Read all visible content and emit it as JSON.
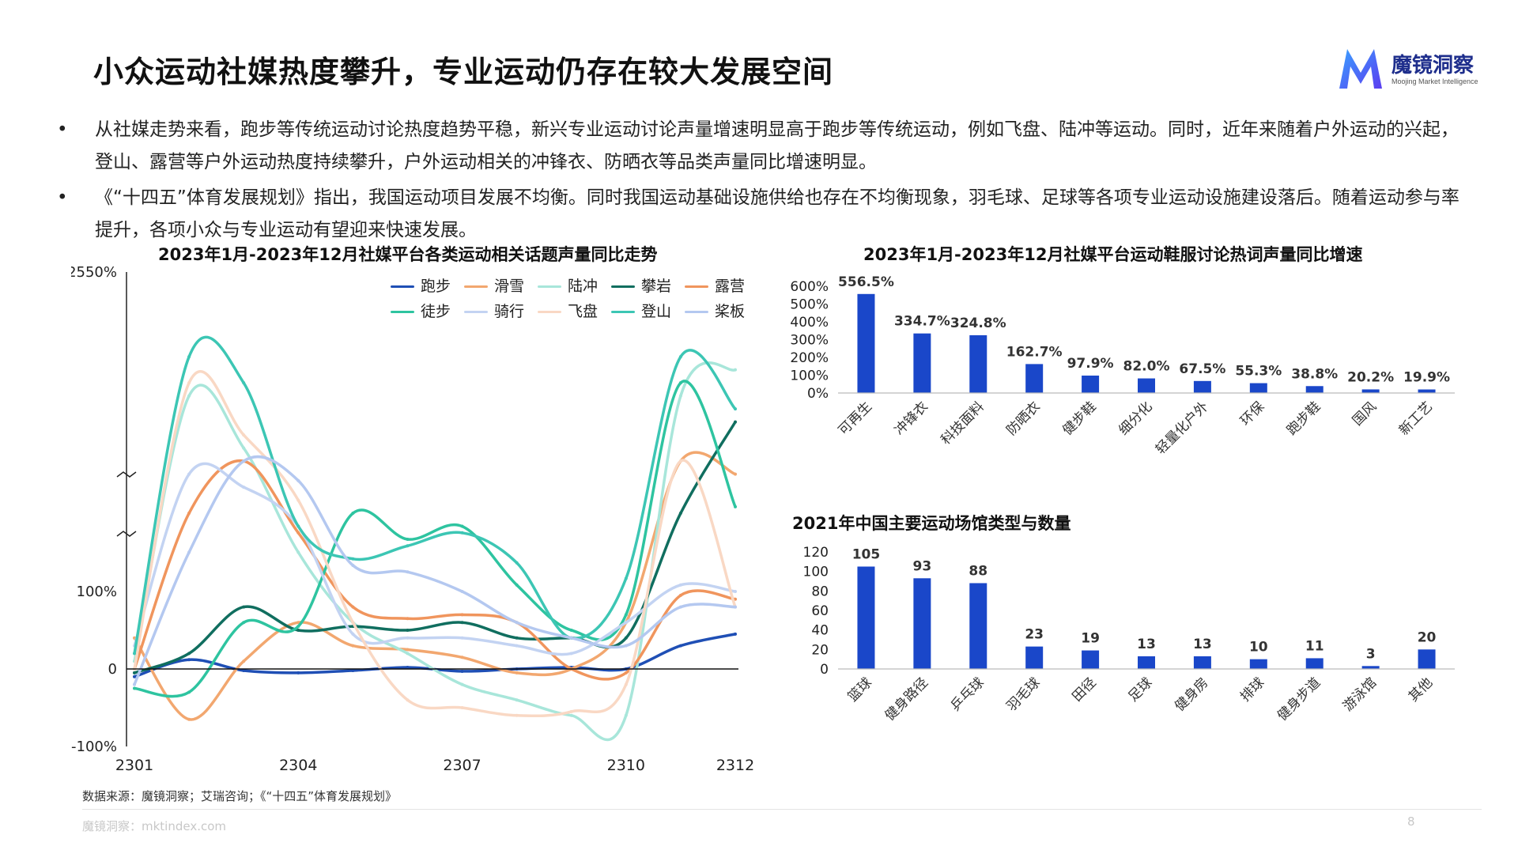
{
  "page": {
    "title": "小众运动社媒热度攀升，专业运动仍存在较大发展空间",
    "logo_name": "魔镜洞察",
    "logo_sub": "Moojing Market Intelligence",
    "bullet_symbol": "•",
    "bullets": [
      "从社媒走势来看，跑步等传统运动讨论热度趋势平稳，新兴专业运动讨论声量增速明显高于跑步等传统运动，例如飞盘、陆冲等运动。同时，近年来随着户外运动的兴起，登山、露营等户外运动热度持续攀升，户外运动相关的冲锋衣、防晒衣等品类声量同比增速明显。",
      "《“十四五”体育发展规划》指出，我国运动项目发展不均衡。同时我国运动基础设施供给也存在不均衡现象，羽毛球、足球等各项专业运动设施建设落后。随着运动参与率提升，各项小众与专业运动有望迎来快速发展。"
    ],
    "source": "数据来源：魔镜洞察；艾瑞咨询；《“十四五”体育发展规划》",
    "site": "魔镜洞察：mktindex.com",
    "page_number": "8"
  },
  "chart_data": [
    {
      "type": "line",
      "title": "2023年1月-2023年12月社媒平台各类运动相关话题声量同比走势",
      "y_tick_labels": [
        "2550%",
        "100%",
        "0",
        "-100%"
      ],
      "x_tick_labels": [
        "2301",
        "2304",
        "2307",
        "2310",
        "2312"
      ],
      "ylim": [
        -100,
        2550
      ],
      "axis_break": true,
      "legend_position": "top-right",
      "x": [
        "2301",
        "2302",
        "2303",
        "2304",
        "2305",
        "2306",
        "2307",
        "2308",
        "2309",
        "2310",
        "2311",
        "2312"
      ],
      "series": [
        {
          "name": "跑步",
          "color": "#1f4fb5",
          "values": [
            -10,
            12,
            -2,
            -5,
            -2,
            2,
            -3,
            0,
            2,
            0,
            30,
            45
          ]
        },
        {
          "name": "滑雪",
          "color": "#f2a76f",
          "values": [
            40,
            -65,
            10,
            60,
            30,
            25,
            15,
            -5,
            0,
            60,
            1100,
            1000
          ]
        },
        {
          "name": "陆冲",
          "color": "#a8e6da",
          "values": [
            10,
            1600,
            1200,
            400,
            60,
            20,
            -20,
            -40,
            -60,
            -60,
            1600,
            1800
          ]
        },
        {
          "name": "攀岩",
          "color": "#106e5f",
          "values": [
            -5,
            20,
            80,
            50,
            55,
            50,
            60,
            40,
            40,
            40,
            700,
            1400
          ]
        },
        {
          "name": "露营",
          "color": "#f0955d",
          "values": [
            0,
            700,
            1100,
            550,
            80,
            65,
            70,
            60,
            0,
            -5,
            95,
            90
          ]
        },
        {
          "name": "徒步",
          "color": "#2ec4a0",
          "values": [
            -25,
            -30,
            60,
            55,
            700,
            500,
            600,
            150,
            50,
            70,
            1700,
            750
          ]
        },
        {
          "name": "骑行",
          "color": "#c3d3f2",
          "values": [
            30,
            1000,
            900,
            600,
            45,
            40,
            40,
            30,
            20,
            60,
            150,
            100
          ]
        },
        {
          "name": "飞盘",
          "color": "#f9d8c4",
          "values": [
            0,
            1700,
            1300,
            800,
            60,
            -40,
            -50,
            -60,
            -55,
            -20,
            1100,
            80
          ]
        },
        {
          "name": "登山",
          "color": "#3cc6b4",
          "values": [
            20,
            1900,
            1700,
            600,
            350,
            450,
            550,
            320,
            40,
            200,
            1900,
            1500
          ]
        },
        {
          "name": "桨板",
          "color": "#b4c8f0",
          "values": [
            -20,
            400,
            1100,
            950,
            300,
            250,
            100,
            60,
            40,
            30,
            80,
            80
          ]
        }
      ]
    },
    {
      "type": "bar",
      "title": "2023年1月-2023年12月社媒平台运动鞋服讨论热词声量同比增速",
      "y_tick_labels": [
        "600%",
        "500%",
        "400%",
        "300%",
        "200%",
        "100%",
        "0%"
      ],
      "ylim": [
        0,
        600
      ],
      "categories": [
        "可再生",
        "冲锋衣",
        "科技面料",
        "防晒衣",
        "健步鞋",
        "细分化",
        "轻量化户外",
        "环保",
        "跑步鞋",
        "国风",
        "新工艺"
      ],
      "values": [
        556.5,
        334.7,
        324.8,
        162.7,
        97.9,
        82.0,
        67.5,
        55.3,
        38.8,
        20.2,
        19.9
      ],
      "data_labels": [
        "556.5%",
        "334.7%",
        "324.8%",
        "162.7%",
        "97.9%",
        "82.0%",
        "67.5%",
        "55.3%",
        "38.8%",
        "20.2%",
        "19.9%"
      ],
      "color": "#1a47c9"
    },
    {
      "type": "bar",
      "title": "2021年中国主要运动场馆类型与数量",
      "y_tick_labels": [
        "120",
        "100",
        "80",
        "60",
        "40",
        "20",
        "0"
      ],
      "ylim": [
        0,
        120
      ],
      "categories": [
        "篮球",
        "健身路径",
        "乒乓球",
        "羽毛球",
        "田径",
        "足球",
        "健身房",
        "排球",
        "健身步道",
        "游泳馆",
        "其他"
      ],
      "values": [
        105,
        93,
        88,
        23,
        19,
        13,
        13,
        10,
        11,
        3,
        20
      ],
      "data_labels": [
        "105",
        "93",
        "88",
        "23",
        "19",
        "13",
        "13",
        "10",
        "11",
        "3",
        "20"
      ],
      "color": "#1a47c9"
    }
  ]
}
